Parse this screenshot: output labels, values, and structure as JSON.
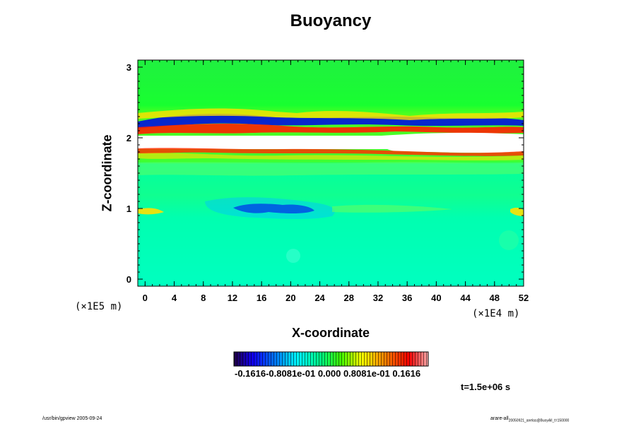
{
  "chart_data": {
    "type": "heatmap",
    "title": "Buoyancy",
    "xlabel": "X-coordinate",
    "ylabel": "Z-coordinate",
    "xlim": [
      -1,
      52
    ],
    "ylim": [
      -0.1,
      3.1
    ],
    "x_ticks": [
      0,
      4,
      8,
      12,
      16,
      20,
      24,
      28,
      32,
      36,
      40,
      44,
      48,
      52
    ],
    "y_ticks": [
      0,
      1,
      2,
      3
    ],
    "x_unit": "(×1E4 m)",
    "y_unit": "(×1E5 m)",
    "colorbar": {
      "labels_text": "-0.1616-0.8081e-01 0.000 0.8081e-01 0.1616",
      "min": -0.1616,
      "max": 0.1616
    },
    "time_label": "t=1.5e+06 s",
    "colors": {
      "background_field": "#00ff66",
      "lower_field": "#00ffcc",
      "positive_extreme": "#ff0000",
      "negative_extreme": "#0000dd",
      "saturated": "#ffffff"
    }
  },
  "footer": {
    "left": "/usr/bin/gpview 2005-09-24",
    "right_main": "arare-all",
    "right_sub": "20050921_anelas@BuoyAll_t=150000"
  }
}
